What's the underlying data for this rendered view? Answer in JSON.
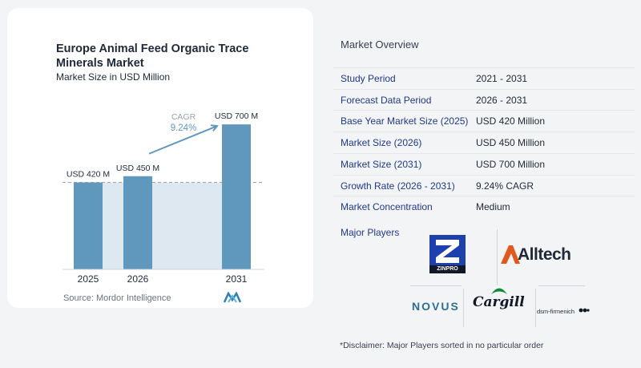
{
  "chart_data": {
    "type": "bar",
    "title": "Europe Animal Feed Organic Trace Minerals Market",
    "subtitle": "Market Size in USD Million",
    "categories": [
      "2025",
      "2026",
      "2031"
    ],
    "values": [
      420,
      450,
      700
    ],
    "data_labels": [
      "USD 420 M",
      "USD 450 M",
      "USD 700 M"
    ],
    "ylim": [
      0,
      720
    ],
    "cagr": {
      "label": "CAGR",
      "value": "9.24%"
    },
    "colors": {
      "bar": "#5f97bd",
      "shade": "#dde8f0",
      "arrow": "#5f97bd",
      "cagr_text": "#5f97bd"
    },
    "grid": false
  },
  "left": {
    "title_line1": "Europe Animal Feed Organic Trace",
    "title_line2": "Minerals Market",
    "subtitle": "Market Size in USD Million",
    "source": "Source: Mordor Intelligence"
  },
  "overview": {
    "title": "Market Overview",
    "rows": [
      {
        "label": "Study Period",
        "value": "2021 - 2031"
      },
      {
        "label": "Forecast Data Period",
        "value": "2026 - 2031"
      },
      {
        "label": "Base Year Market Size (2025)",
        "value": "USD 420 Million"
      },
      {
        "label": "Market Size (2026)",
        "value": "USD 450 Million"
      },
      {
        "label": "Market Size (2031)",
        "value": "USD 700 Million"
      },
      {
        "label": "Growth Rate (2026 - 2031)",
        "value": "9.24% CAGR"
      },
      {
        "label": "Market Concentration",
        "value": "Medium"
      }
    ],
    "players_label": "Major Players",
    "disclaimer": "*Disclaimer: Major Players sorted in no particular order"
  },
  "players": {
    "zinpro": "ZINPRO",
    "alltech": "Alltech",
    "novus": "NOVUS",
    "cargill": "Cargill",
    "dsm": "dsm-firmenich"
  }
}
